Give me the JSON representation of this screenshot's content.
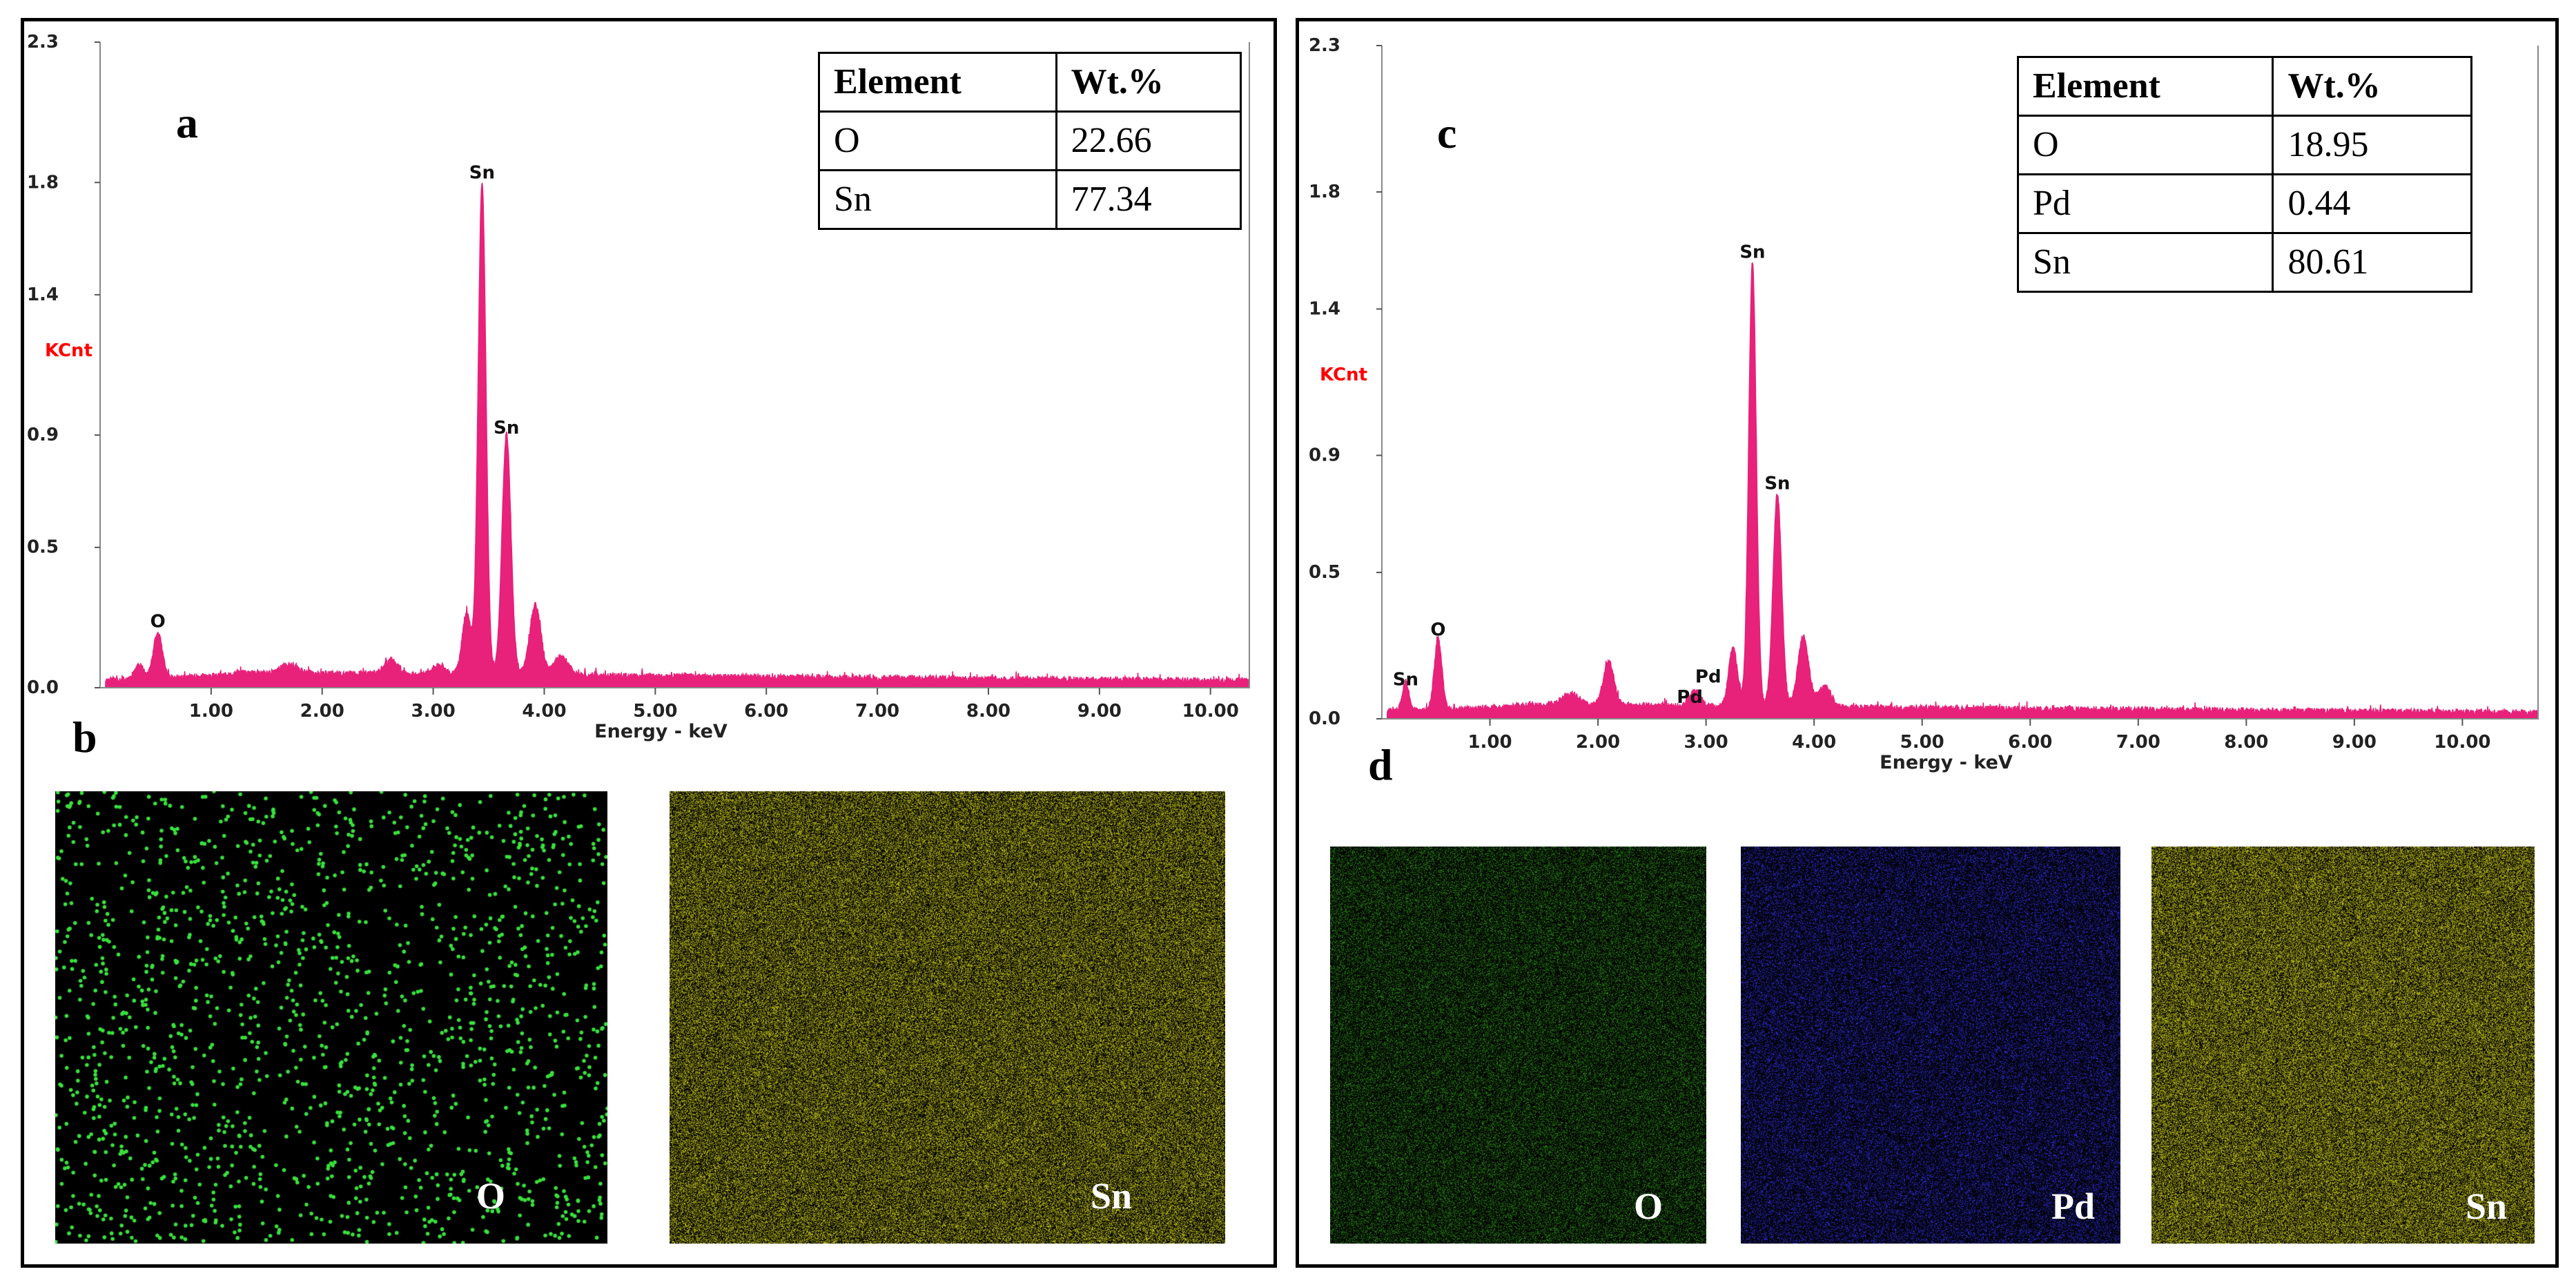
{
  "chart_data": [
    {
      "id": "a",
      "type": "line",
      "panel_label": "a",
      "xlabel": "Energy - keV",
      "ylabel": "KCnt",
      "xlim": [
        0.0,
        10.35
      ],
      "ylim": [
        0.0,
        2.3
      ],
      "x_ticks": [
        "1.00",
        "2.00",
        "3.00",
        "4.00",
        "5.00",
        "6.00",
        "7.00",
        "8.00",
        "9.00",
        "10.00"
      ],
      "x_tick_values": [
        1,
        2,
        3,
        4,
        5,
        6,
        7,
        8,
        9,
        10
      ],
      "y_ticks": [
        "2.3",
        "1.8",
        "1.4",
        "0.9",
        "0.5",
        "0.0"
      ],
      "y_tick_values": [
        2.3,
        1.8,
        1.4,
        0.9,
        0.5,
        0.0
      ],
      "baseline": 0.045,
      "peaks": [
        {
          "center": 0.52,
          "height": 0.16,
          "width": 0.04
        },
        {
          "center": 0.35,
          "height": 0.05,
          "width": 0.04
        },
        {
          "center": 1.7,
          "height": 0.03,
          "width": 0.08
        },
        {
          "center": 2.62,
          "height": 0.05,
          "width": 0.06
        },
        {
          "center": 3.05,
          "height": 0.03,
          "width": 0.05
        },
        {
          "center": 3.44,
          "height": 1.76,
          "width": 0.035
        },
        {
          "center": 3.3,
          "height": 0.22,
          "width": 0.04
        },
        {
          "center": 3.66,
          "height": 0.86,
          "width": 0.04
        },
        {
          "center": 3.92,
          "height": 0.25,
          "width": 0.05
        },
        {
          "center": 4.15,
          "height": 0.07,
          "width": 0.06
        }
      ],
      "annotations": [
        {
          "text": "O",
          "x": 0.52,
          "y": 0.2
        },
        {
          "text": "Sn",
          "x": 3.44,
          "y": 1.8
        },
        {
          "text": "Sn",
          "x": 3.66,
          "y": 0.89
        }
      ],
      "table": {
        "headers": [
          "Element",
          "Wt.%"
        ],
        "rows": [
          [
            "O",
            "22.66"
          ],
          [
            "Sn",
            "77.34"
          ]
        ]
      }
    },
    {
      "id": "c",
      "type": "line",
      "panel_label": "c",
      "xlabel": "Energy - keV",
      "ylabel": "KCnt",
      "xlim": [
        0.0,
        10.7
      ],
      "ylim": [
        0.0,
        2.3
      ],
      "x_ticks": [
        "1.00",
        "2.00",
        "3.00",
        "4.00",
        "5.00",
        "6.00",
        "7.00",
        "8.00",
        "9.00",
        "10.00"
      ],
      "x_tick_values": [
        1,
        2,
        3,
        4,
        5,
        6,
        7,
        8,
        9,
        10
      ],
      "y_ticks": [
        "2.3",
        "1.8",
        "1.4",
        "0.9",
        "0.5",
        "0.0"
      ],
      "y_tick_values": [
        2.3,
        1.8,
        1.4,
        0.9,
        0.5,
        0.0
      ],
      "baseline": 0.04,
      "peaks": [
        {
          "center": 0.52,
          "height": 0.24,
          "width": 0.035
        },
        {
          "center": 0.22,
          "height": 0.1,
          "width": 0.03
        },
        {
          "center": 1.75,
          "height": 0.04,
          "width": 0.08
        },
        {
          "center": 2.1,
          "height": 0.15,
          "width": 0.05
        },
        {
          "center": 2.9,
          "height": 0.05,
          "width": 0.05
        },
        {
          "center": 3.43,
          "height": 1.52,
          "width": 0.035
        },
        {
          "center": 3.25,
          "height": 0.2,
          "width": 0.04
        },
        {
          "center": 3.66,
          "height": 0.73,
          "width": 0.04
        },
        {
          "center": 3.9,
          "height": 0.24,
          "width": 0.05
        },
        {
          "center": 4.1,
          "height": 0.07,
          "width": 0.06
        }
      ],
      "annotations": [
        {
          "text": "O",
          "x": 0.52,
          "y": 0.27
        },
        {
          "text": "Sn",
          "x": 0.22,
          "y": 0.1
        },
        {
          "text": "Pd",
          "x": 3.02,
          "y": 0.11
        },
        {
          "text": "Pd",
          "x": 2.85,
          "y": 0.04
        },
        {
          "text": "Sn",
          "x": 3.43,
          "y": 1.56
        },
        {
          "text": "Sn",
          "x": 3.66,
          "y": 0.77
        }
      ],
      "table": {
        "headers": [
          "Element",
          "Wt.%"
        ],
        "rows": [
          [
            "O",
            "18.95"
          ],
          [
            "Pd",
            "0.44"
          ],
          [
            "Sn",
            "80.61"
          ]
        ]
      }
    }
  ],
  "maps": {
    "b": {
      "panel_label": "b",
      "items": [
        {
          "label": "O",
          "color": "#39e13c",
          "density": 0.003,
          "style": "dots"
        },
        {
          "label": "Sn",
          "color": "#c8c81e",
          "density": 0.18,
          "style": "noise"
        }
      ]
    },
    "d": {
      "panel_label": "d",
      "items": [
        {
          "label": "O",
          "color": "#2f8f1a",
          "density": 0.12,
          "style": "noise"
        },
        {
          "label": "Pd",
          "color": "#3333ee",
          "density": 0.1,
          "style": "noise"
        },
        {
          "label": "Sn",
          "color": "#c8c81e",
          "density": 0.2,
          "style": "noise"
        }
      ]
    }
  },
  "colors": {
    "spectrum_fill": "#e8217a",
    "kcnt_label": "#ff0000"
  }
}
